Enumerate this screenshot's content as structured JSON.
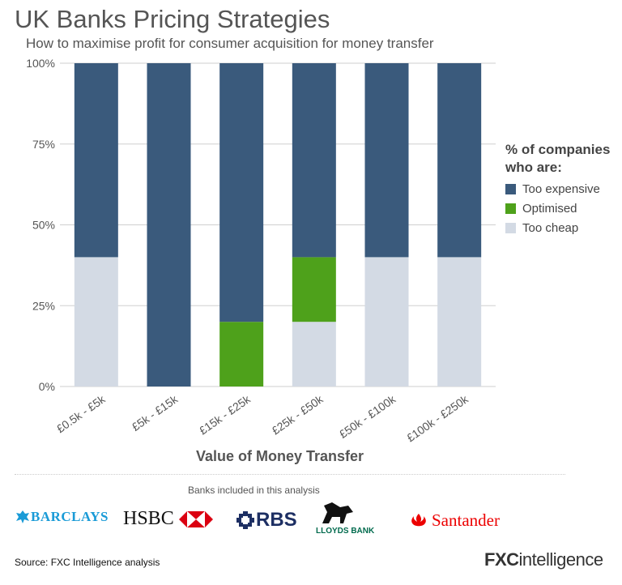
{
  "title": "UK Banks Pricing Strategies",
  "subtitle": "How to maximise profit for consumer acquisition for money transfer",
  "chart_data": {
    "type": "bar",
    "stacked": true,
    "categories": [
      "£0.5k - £5k",
      "£5k - £15k",
      "£15k - £25k",
      "£25k - £50k",
      "£50k - £100k",
      "£100k - £250k"
    ],
    "series": [
      {
        "name": "Too cheap",
        "color": "#d3dae4",
        "values": [
          40,
          0,
          0,
          20,
          40,
          40
        ]
      },
      {
        "name": "Optimised",
        "color": "#4ea11b",
        "values": [
          0,
          0,
          20,
          20,
          0,
          0
        ]
      },
      {
        "name": "Too expensive",
        "color": "#3a5a7c",
        "values": [
          60,
          100,
          80,
          60,
          60,
          60
        ]
      }
    ],
    "yticks": [
      "0%",
      "25%",
      "50%",
      "75%",
      "100%"
    ],
    "ylim": [
      0,
      100
    ],
    "xlabel": "Value of Money Transfer",
    "ylabel": "",
    "grid": true,
    "legend_position": "right"
  },
  "legend": {
    "title_line1": "% of companies",
    "title_line2": "who are:",
    "items": [
      "Too expensive",
      "Optimised",
      "Too cheap"
    ],
    "colors": [
      "#3a5a7c",
      "#4ea11b",
      "#d3dae4"
    ]
  },
  "banks_caption": "Banks included in this analysis",
  "banks": {
    "barclays": "BARCLAYS",
    "hsbc": "HSBC",
    "rbs": "RBS",
    "lloyds": "LLOYDS BANK",
    "santander": "Santander"
  },
  "source": "Source: FXC Intelligence analysis",
  "brand": {
    "bold": "FXC",
    "rest": "intelligence"
  }
}
